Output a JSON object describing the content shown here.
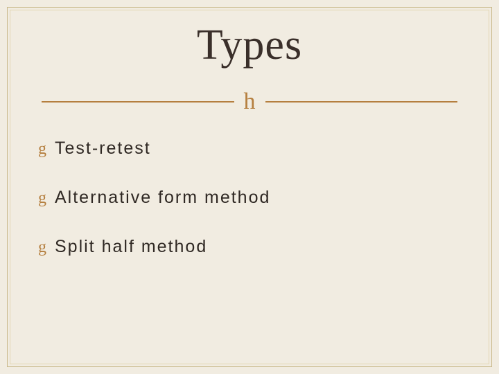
{
  "slide": {
    "title": "Types",
    "divider": {
      "ornament_glyph": "h",
      "line_color": "#b57f3f",
      "ornament_color": "#b57f3f"
    },
    "bullets": {
      "glyph": "g",
      "glyph_color": "#b57f3f",
      "items": [
        {
          "text": "Test-retest"
        },
        {
          "text": "Alternative form method"
        },
        {
          "text": "Split half method"
        }
      ]
    },
    "background_color": "#f1ece1",
    "frame_color_outer": "#c9b98a",
    "frame_color_inner": "#e2d6b3",
    "title_fontsize": 62,
    "body_fontsize": 25,
    "body_letter_spacing": 2,
    "bullet_spacing": 42
  }
}
